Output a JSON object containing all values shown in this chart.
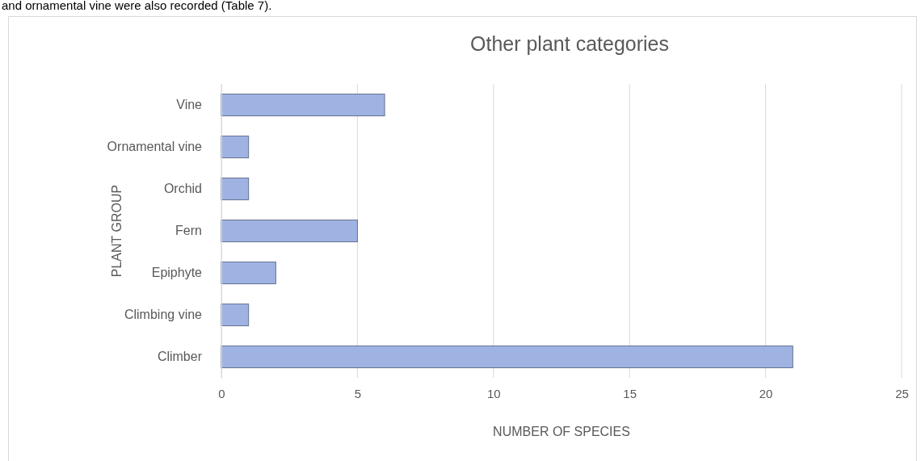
{
  "chart_data": {
    "type": "bar",
    "orientation": "horizontal",
    "title": "Other plant categories",
    "xlabel": "NUMBER OF SPECIES",
    "ylabel": "PLANT GROUP",
    "annotations": [
      "and ornamental vine were also recorded (Table 7)."
    ],
    "categories": [
      "Vine",
      "Ornamental vine",
      "Orchid",
      "Fern",
      "Epiphyte",
      "Climbing vine",
      "Climber"
    ],
    "values": [
      6,
      1,
      1,
      5,
      2,
      1,
      21
    ],
    "color": "#9fb3e3",
    "xlim": [
      0,
      25
    ],
    "xticks": [
      0,
      5,
      10,
      15,
      20,
      25
    ],
    "grid": "x"
  }
}
